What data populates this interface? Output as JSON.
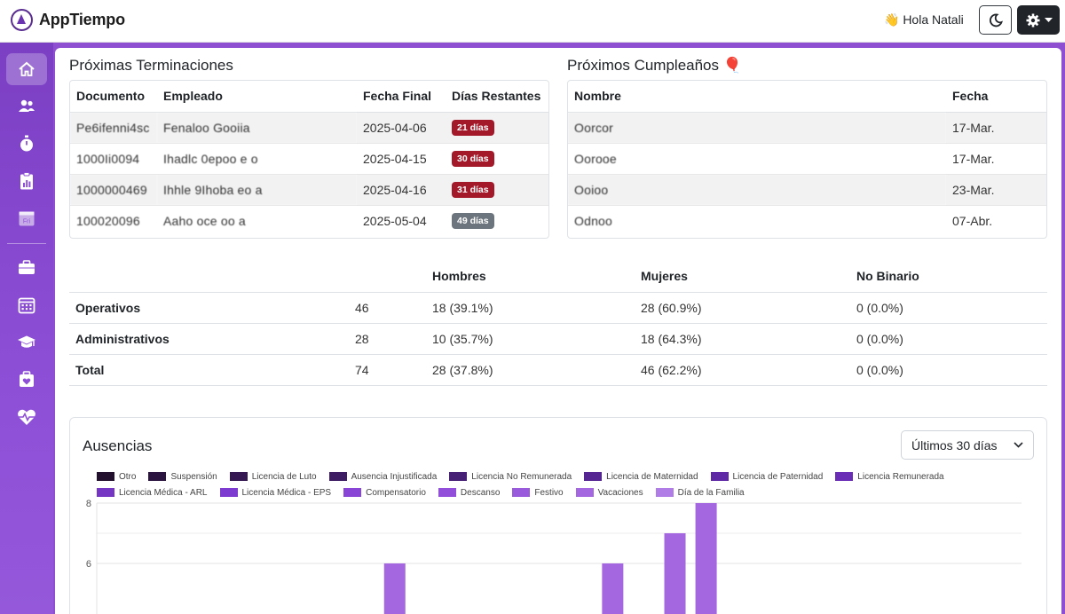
{
  "header": {
    "brand_name": "AppTiempo",
    "greeting": "👋 Hola Natali",
    "theme_icon": "moon-icon",
    "settings_icon": "gear-icon"
  },
  "sidebar": {
    "items": [
      {
        "icon": "home-icon",
        "active": true
      },
      {
        "icon": "users-icon",
        "active": false
      },
      {
        "icon": "stopwatch-icon",
        "active": false
      },
      {
        "icon": "clipboard-chart-icon",
        "active": false
      },
      {
        "icon": "calendar-fri-icon",
        "label": "Fri",
        "active": false
      },
      {
        "icon": "briefcase-icon",
        "active": false
      },
      {
        "icon": "calendar-grid-icon",
        "active": false
      },
      {
        "icon": "graduation-cap-icon",
        "active": false
      },
      {
        "icon": "medical-box-icon",
        "active": false
      },
      {
        "icon": "heart-pulse-icon",
        "active": false
      }
    ]
  },
  "terminations": {
    "title": "Próximas Terminaciones",
    "headers": [
      "Documento",
      "Empleado",
      "Fecha Final",
      "Días Restantes"
    ],
    "rows": [
      {
        "documento": "Pe6ifenni4sc",
        "empleado": "Fenaloo Gooiia",
        "fecha": "2025-04-06",
        "dias": "21 días",
        "badge": "red"
      },
      {
        "documento": "1000Ii0094",
        "empleado": "Ihadlc 0epoo  e  o",
        "fecha": "2025-04-15",
        "dias": "30 días",
        "badge": "red"
      },
      {
        "documento": "1000000469",
        "empleado": "Ihhle 9Ihoba  eo  a",
        "fecha": "2025-04-16",
        "dias": "31 días",
        "badge": "red"
      },
      {
        "documento": "100020096",
        "empleado": "Aaho  oce  oo  a",
        "fecha": "2025-05-04",
        "dias": "49 días",
        "badge": "gray"
      }
    ]
  },
  "birthdays": {
    "title": "Próximos Cumpleaños 🎈",
    "headers": [
      "Nombre",
      "Fecha"
    ],
    "rows": [
      {
        "nombre": "Oorcor",
        "fecha": "17-Mar."
      },
      {
        "nombre": "Oorooe",
        "fecha": "17-Mar."
      },
      {
        "nombre": "Ooioo",
        "fecha": "23-Mar."
      },
      {
        "nombre": "Odnoo",
        "fecha": "07-Abr."
      }
    ]
  },
  "stats": {
    "headers": [
      "",
      "",
      "Hombres",
      "Mujeres",
      "No Binario"
    ],
    "rows": [
      {
        "label": "Operativos",
        "total": "46",
        "hombres": "18 (39.1%)",
        "mujeres": "28 (60.9%)",
        "nobinario": "0 (0.0%)"
      },
      {
        "label": "Administrativos",
        "total": "28",
        "hombres": "10 (35.7%)",
        "mujeres": "18 (64.3%)",
        "nobinario": "0 (0.0%)"
      },
      {
        "label": "Total",
        "total": "74",
        "hombres": "28 (37.8%)",
        "mujeres": "46 (62.2%)",
        "nobinario": "0 (0.0%)"
      }
    ]
  },
  "absences": {
    "title": "Ausencias",
    "period": "Últimos 30 días"
  },
  "chart_data": {
    "type": "bar",
    "series": [
      {
        "name": "Otro",
        "color": "#23102f"
      },
      {
        "name": "Suspensión",
        "color": "#2c1440"
      },
      {
        "name": "Licencia de Luto",
        "color": "#351852"
      },
      {
        "name": "Ausencia Injustificada",
        "color": "#3d1c63"
      },
      {
        "name": "Licencia No Remunerada",
        "color": "#462074"
      },
      {
        "name": "Licencia de Maternidad",
        "color": "#552592"
      },
      {
        "name": "Licencia de Paternidad",
        "color": "#5f29a5"
      },
      {
        "name": "Licencia Remunerada",
        "color": "#6a2eb6"
      },
      {
        "name": "Licencia Médica - ARL",
        "color": "#7536c4"
      },
      {
        "name": "Licencia Médica - EPS",
        "color": "#7e3bd0"
      },
      {
        "name": "Compensatorio",
        "color": "#8946d6"
      },
      {
        "name": "Descanso",
        "color": "#9250da"
      },
      {
        "name": "Festivo",
        "color": "#9a5adc"
      },
      {
        "name": "Vacaciones",
        "color": "#a467df"
      },
      {
        "name": "Día de la Familia",
        "color": "#b07de6"
      }
    ],
    "y_ticks": [
      "8",
      "6"
    ],
    "ylim": [
      0,
      8
    ],
    "bars": [
      {
        "slot": 9,
        "value": 6,
        "series": "Vacaciones"
      },
      {
        "slot": 16,
        "value": 6,
        "series": "Vacaciones"
      },
      {
        "slot": 18,
        "value": 7,
        "series": "Vacaciones"
      },
      {
        "slot": 19,
        "value": 8,
        "series": "Vacaciones"
      }
    ],
    "slots": 30,
    "grid": true
  }
}
